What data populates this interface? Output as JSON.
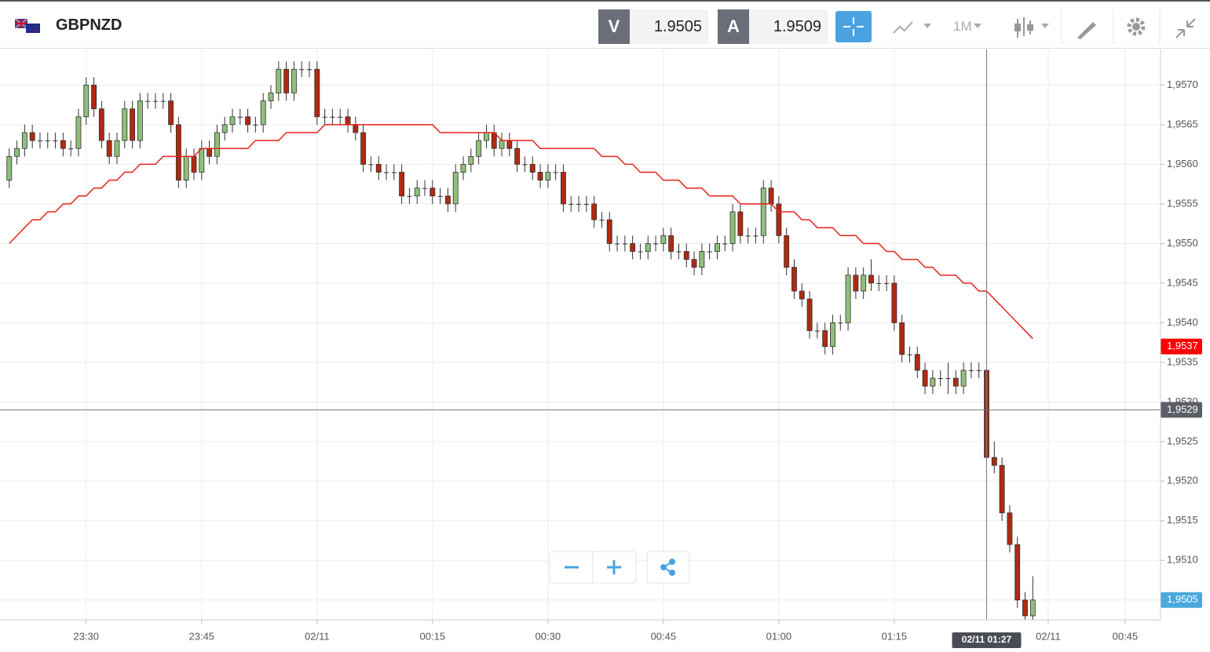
{
  "header": {
    "symbol": "GBPNZD",
    "bid_label": "V",
    "bid": "1.9505",
    "ask_label": "A",
    "ask": "1.9509",
    "timeframe": "1M"
  },
  "chart_data": {
    "type": "candlestick",
    "up_color": "#8fbf7a",
    "down_color": "#b02a10",
    "ma_color": "#e8221b",
    "xlim": [
      -1.2,
      149.6
    ],
    "ylim": [
      1.95025,
      1.95745
    ],
    "xticks": [
      {
        "value": 10,
        "label": "23:30"
      },
      {
        "value": 25,
        "label": "23:45"
      },
      {
        "value": 40,
        "label": "02/11"
      },
      {
        "value": 55,
        "label": "00:15"
      },
      {
        "value": 70,
        "label": "00:30"
      },
      {
        "value": 85,
        "label": "00:45"
      },
      {
        "value": 100,
        "label": "01:00"
      },
      {
        "value": 115,
        "label": "01:15"
      },
      {
        "value": 135,
        "label": "02/11"
      },
      {
        "value": 145,
        "label": "00:45"
      }
    ],
    "yticks": [
      {
        "value": 1.9505,
        "label": "1,9505"
      },
      {
        "value": 1.951,
        "label": "1,9510"
      },
      {
        "value": 1.9515,
        "label": "1,9515"
      },
      {
        "value": 1.952,
        "label": "1,9520"
      },
      {
        "value": 1.9525,
        "label": "1,9525"
      },
      {
        "value": 1.953,
        "label": "1,9530"
      },
      {
        "value": 1.9535,
        "label": "1,9535"
      },
      {
        "value": 1.954,
        "label": "1,9540"
      },
      {
        "value": 1.9545,
        "label": "1,9545"
      },
      {
        "value": 1.955,
        "label": "1,9550"
      },
      {
        "value": 1.9555,
        "label": "1,9555"
      },
      {
        "value": 1.956,
        "label": "1,9560"
      },
      {
        "value": 1.9565,
        "label": "1,9565"
      },
      {
        "value": 1.957,
        "label": "1,9570"
      }
    ],
    "grid": true,
    "crosshair": {
      "x": 127,
      "x_label": "02/11 01:27",
      "y": 1.9529,
      "y_label": "1,9529"
    },
    "price_labels": [
      {
        "value": 1.9537,
        "label": "1,9537",
        "color": "#ff0000"
      },
      {
        "value": 1.9505,
        "label": "1,9505",
        "color": "#4aa8dc"
      }
    ],
    "ohlc": [
      [
        1.9558,
        1.9562,
        1.9557,
        1.9561
      ],
      [
        1.9561,
        1.9563,
        1.956,
        1.9562
      ],
      [
        1.9562,
        1.9565,
        1.9561,
        1.9564
      ],
      [
        1.9564,
        1.9565,
        1.9562,
        1.9563
      ],
      [
        1.9563,
        1.9564,
        1.9562,
        1.9563
      ],
      [
        1.9563,
        1.9564,
        1.9562,
        1.9563
      ],
      [
        1.9563,
        1.9564,
        1.9562,
        1.9563
      ],
      [
        1.9563,
        1.9564,
        1.9561,
        1.9562
      ],
      [
        1.9562,
        1.9563,
        1.9561,
        1.9562
      ],
      [
        1.9562,
        1.9567,
        1.9561,
        1.9566
      ],
      [
        1.9566,
        1.9571,
        1.9565,
        1.957
      ],
      [
        1.957,
        1.9571,
        1.9566,
        1.9567
      ],
      [
        1.9567,
        1.9568,
        1.9562,
        1.9563
      ],
      [
        1.9563,
        1.9564,
        1.956,
        1.9561
      ],
      [
        1.9561,
        1.9564,
        1.956,
        1.9563
      ],
      [
        1.9563,
        1.9568,
        1.9562,
        1.9567
      ],
      [
        1.9567,
        1.9568,
        1.9562,
        1.9563
      ],
      [
        1.9563,
        1.9569,
        1.9562,
        1.9568
      ],
      [
        1.9568,
        1.9569,
        1.9567,
        1.9568
      ],
      [
        1.9568,
        1.9569,
        1.9567,
        1.9568
      ],
      [
        1.9568,
        1.9569,
        1.9567,
        1.9568
      ],
      [
        1.9568,
        1.9569,
        1.9564,
        1.9565
      ],
      [
        1.9565,
        1.9566,
        1.9557,
        1.9558
      ],
      [
        1.9558,
        1.9562,
        1.9557,
        1.9561
      ],
      [
        1.9561,
        1.9562,
        1.9558,
        1.9559
      ],
      [
        1.9559,
        1.9563,
        1.9558,
        1.9562
      ],
      [
        1.9562,
        1.9563,
        1.956,
        1.9561
      ],
      [
        1.9561,
        1.9565,
        1.956,
        1.9564
      ],
      [
        1.9564,
        1.9566,
        1.9563,
        1.9565
      ],
      [
        1.9565,
        1.9567,
        1.9564,
        1.9566
      ],
      [
        1.9566,
        1.9567,
        1.9565,
        1.9566
      ],
      [
        1.9566,
        1.9567,
        1.9564,
        1.9565
      ],
      [
        1.9565,
        1.9566,
        1.9564,
        1.9565
      ],
      [
        1.9565,
        1.9569,
        1.9564,
        1.9568
      ],
      [
        1.9568,
        1.957,
        1.9567,
        1.9569
      ],
      [
        1.9569,
        1.9573,
        1.9568,
        1.9572
      ],
      [
        1.9572,
        1.9573,
        1.9568,
        1.9569
      ],
      [
        1.9569,
        1.9573,
        1.9568,
        1.9572
      ],
      [
        1.9572,
        1.9573,
        1.9571,
        1.9572
      ],
      [
        1.9572,
        1.9573,
        1.9571,
        1.9572
      ],
      [
        1.9572,
        1.9573,
        1.9565,
        1.9566
      ],
      [
        1.9566,
        1.9567,
        1.9565,
        1.9566
      ],
      [
        1.9566,
        1.9567,
        1.9565,
        1.9566
      ],
      [
        1.9566,
        1.9567,
        1.9565,
        1.9566
      ],
      [
        1.9566,
        1.9567,
        1.9564,
        1.9565
      ],
      [
        1.9565,
        1.9566,
        1.9563,
        1.9564
      ],
      [
        1.9564,
        1.9565,
        1.9559,
        1.956
      ],
      [
        1.956,
        1.9561,
        1.9559,
        1.956
      ],
      [
        1.956,
        1.9561,
        1.9558,
        1.9559
      ],
      [
        1.9559,
        1.956,
        1.9558,
        1.9559
      ],
      [
        1.9559,
        1.956,
        1.9558,
        1.9559
      ],
      [
        1.9559,
        1.956,
        1.9555,
        1.9556
      ],
      [
        1.9556,
        1.9557,
        1.9555,
        1.9556
      ],
      [
        1.9556,
        1.9558,
        1.9555,
        1.9557
      ],
      [
        1.9557,
        1.9558,
        1.9556,
        1.9557
      ],
      [
        1.9557,
        1.9558,
        1.9555,
        1.9556
      ],
      [
        1.9556,
        1.9557,
        1.9555,
        1.9556
      ],
      [
        1.9556,
        1.9557,
        1.9554,
        1.9555
      ],
      [
        1.9555,
        1.956,
        1.9554,
        1.9559
      ],
      [
        1.9559,
        1.9561,
        1.9558,
        1.956
      ],
      [
        1.956,
        1.9562,
        1.9559,
        1.9561
      ],
      [
        1.9561,
        1.9564,
        1.956,
        1.9563
      ],
      [
        1.9563,
        1.9565,
        1.9562,
        1.9564
      ],
      [
        1.9564,
        1.9565,
        1.9561,
        1.9562
      ],
      [
        1.9562,
        1.9564,
        1.9561,
        1.9563
      ],
      [
        1.9563,
        1.9564,
        1.9561,
        1.9562
      ],
      [
        1.9562,
        1.9563,
        1.9559,
        1.956
      ],
      [
        1.956,
        1.9561,
        1.9559,
        1.956
      ],
      [
        1.956,
        1.9561,
        1.9558,
        1.9559
      ],
      [
        1.9559,
        1.956,
        1.9557,
        1.9558
      ],
      [
        1.9558,
        1.956,
        1.9557,
        1.9559
      ],
      [
        1.9559,
        1.956,
        1.9558,
        1.9559
      ],
      [
        1.9559,
        1.956,
        1.9554,
        1.9555
      ],
      [
        1.9555,
        1.9556,
        1.9554,
        1.9555
      ],
      [
        1.9555,
        1.9556,
        1.9554,
        1.9555
      ],
      [
        1.9555,
        1.9556,
        1.9554,
        1.9555
      ],
      [
        1.9555,
        1.9556,
        1.9552,
        1.9553
      ],
      [
        1.9553,
        1.9554,
        1.9552,
        1.9553
      ],
      [
        1.9553,
        1.9554,
        1.9549,
        1.955
      ],
      [
        1.955,
        1.9551,
        1.9549,
        1.955
      ],
      [
        1.955,
        1.9551,
        1.9549,
        1.955
      ],
      [
        1.955,
        1.9551,
        1.9548,
        1.9549
      ],
      [
        1.9549,
        1.955,
        1.9548,
        1.9549
      ],
      [
        1.9549,
        1.9551,
        1.9548,
        1.955
      ],
      [
        1.955,
        1.9551,
        1.9549,
        1.955
      ],
      [
        1.955,
        1.9552,
        1.9549,
        1.9551
      ],
      [
        1.9551,
        1.9552,
        1.9548,
        1.9549
      ],
      [
        1.9549,
        1.955,
        1.9548,
        1.9549
      ],
      [
        1.9549,
        1.955,
        1.9547,
        1.9548
      ],
      [
        1.9548,
        1.9549,
        1.9546,
        1.9547
      ],
      [
        1.9547,
        1.955,
        1.9546,
        1.9549
      ],
      [
        1.9549,
        1.955,
        1.9548,
        1.9549
      ],
      [
        1.9549,
        1.9551,
        1.9548,
        1.955
      ],
      [
        1.955,
        1.9551,
        1.9549,
        1.955
      ],
      [
        1.955,
        1.9555,
        1.9549,
        1.9554
      ],
      [
        1.9554,
        1.9555,
        1.955,
        1.9551
      ],
      [
        1.9551,
        1.9552,
        1.955,
        1.9551
      ],
      [
        1.9551,
        1.9552,
        1.955,
        1.9551
      ],
      [
        1.9551,
        1.9558,
        1.955,
        1.9557
      ],
      [
        1.9557,
        1.9558,
        1.9554,
        1.9555
      ],
      [
        1.9555,
        1.9556,
        1.955,
        1.9551
      ],
      [
        1.9551,
        1.9552,
        1.9546,
        1.9547
      ],
      [
        1.9547,
        1.9548,
        1.9543,
        1.9544
      ],
      [
        1.9544,
        1.9545,
        1.9542,
        1.9543
      ],
      [
        1.9543,
        1.9544,
        1.9538,
        1.9539
      ],
      [
        1.9539,
        1.954,
        1.9538,
        1.9539
      ],
      [
        1.9539,
        1.954,
        1.9536,
        1.9537
      ],
      [
        1.9537,
        1.9541,
        1.9536,
        1.954
      ],
      [
        1.954,
        1.9541,
        1.9539,
        1.954
      ],
      [
        1.954,
        1.9547,
        1.9539,
        1.9546
      ],
      [
        1.9546,
        1.9547,
        1.9543,
        1.9544
      ],
      [
        1.9544,
        1.9547,
        1.9543,
        1.9546
      ],
      [
        1.9546,
        1.9548,
        1.9544,
        1.9545
      ],
      [
        1.9545,
        1.9546,
        1.9544,
        1.9545
      ],
      [
        1.9545,
        1.9546,
        1.9544,
        1.9545
      ],
      [
        1.9545,
        1.9546,
        1.9539,
        1.954
      ],
      [
        1.954,
        1.9541,
        1.9535,
        1.9536
      ],
      [
        1.9536,
        1.9537,
        1.9535,
        1.9536
      ],
      [
        1.9536,
        1.9537,
        1.9533,
        1.9534
      ],
      [
        1.9534,
        1.9535,
        1.9531,
        1.9532
      ],
      [
        1.9532,
        1.9534,
        1.9531,
        1.9533
      ],
      [
        1.9533,
        1.9534,
        1.9532,
        1.9533
      ],
      [
        1.9533,
        1.9535,
        1.9531,
        1.9533
      ],
      [
        1.9533,
        1.9534,
        1.9531,
        1.9532
      ],
      [
        1.9532,
        1.9535,
        1.9531,
        1.9534
      ],
      [
        1.9534,
        1.9535,
        1.9533,
        1.9534
      ],
      [
        1.9534,
        1.9535,
        1.9533,
        1.9534
      ],
      [
        1.9534,
        1.9535,
        1.9521,
        1.9523
      ],
      [
        1.9523,
        1.9525,
        1.9521,
        1.9522
      ],
      [
        1.9522,
        1.9523,
        1.9515,
        1.9516
      ],
      [
        1.9516,
        1.9517,
        1.9511,
        1.9512
      ],
      [
        1.9512,
        1.9513,
        1.9504,
        1.9505
      ],
      [
        1.9505,
        1.9506,
        1.9502,
        1.9503
      ],
      [
        1.9503,
        1.9508,
        1.9502,
        1.9505
      ]
    ],
    "ma": [
      1.955,
      1.9551,
      1.9552,
      1.9553,
      1.9553,
      1.9554,
      1.9554,
      1.9555,
      1.9555,
      1.9556,
      1.9556,
      1.9557,
      1.9557,
      1.9558,
      1.9558,
      1.9559,
      1.9559,
      1.956,
      1.956,
      1.956,
      1.9561,
      1.9561,
      1.9561,
      1.9561,
      1.9561,
      1.9562,
      1.9562,
      1.9562,
      1.9562,
      1.9562,
      1.9562,
      1.9562,
      1.9563,
      1.9563,
      1.9563,
      1.9563,
      1.9564,
      1.9564,
      1.9564,
      1.9564,
      1.9564,
      1.9565,
      1.9565,
      1.9565,
      1.9565,
      1.9565,
      1.9565,
      1.9565,
      1.9565,
      1.9565,
      1.9565,
      1.9565,
      1.9565,
      1.9565,
      1.9565,
      1.9565,
      1.9564,
      1.9564,
      1.9564,
      1.9564,
      1.9564,
      1.9564,
      1.9564,
      1.9564,
      1.9563,
      1.9563,
      1.9563,
      1.9563,
      1.9563,
      1.9562,
      1.9562,
      1.9562,
      1.9562,
      1.9562,
      1.9562,
      1.9562,
      1.9562,
      1.9561,
      1.9561,
      1.9561,
      1.956,
      1.956,
      1.9559,
      1.9559,
      1.9559,
      1.9558,
      1.9558,
      1.9558,
      1.9557,
      1.9557,
      1.9557,
      1.9556,
      1.9556,
      1.9556,
      1.9556,
      1.9555,
      1.9555,
      1.9555,
      1.9555,
      1.9555,
      1.9554,
      1.9554,
      1.9554,
      1.9553,
      1.9553,
      1.9552,
      1.9552,
      1.9552,
      1.9551,
      1.9551,
      1.9551,
      1.955,
      1.955,
      1.955,
      1.9549,
      1.9549,
      1.9548,
      1.9548,
      1.9548,
      1.9547,
      1.9547,
      1.9546,
      1.9546,
      1.9546,
      1.9545,
      1.9545,
      1.9544,
      1.9544,
      1.9543,
      1.9542,
      1.9541,
      1.954,
      1.9539,
      1.9538
    ]
  }
}
